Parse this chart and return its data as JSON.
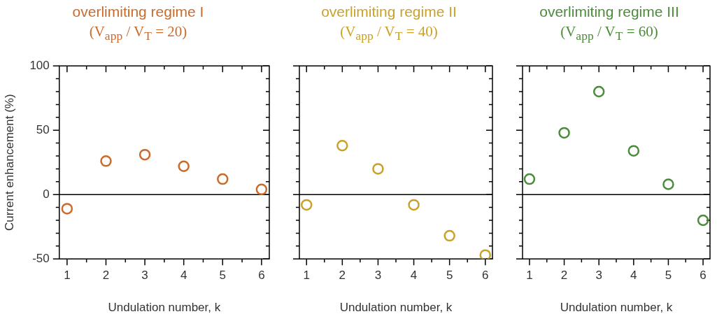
{
  "chart_data": [
    {
      "type": "scatter",
      "title": "overlimiting regime I",
      "subtitle": "(V$_{app}$ / V$_{T}$ = 20)",
      "xlabel": "Undulation number, k",
      "ylabel": "Current enhancement (%)",
      "x": [
        1,
        2,
        3,
        4,
        5,
        6
      ],
      "values": [
        -11,
        26,
        31,
        22,
        12,
        4
      ],
      "color": "#cc6a2a",
      "marker": "circle",
      "xlim": [
        0.8,
        6.2
      ],
      "xticks": [
        1,
        {
          "value": 1.5,
          "label": null
        },
        2,
        {
          "value": 2.5,
          "label": null
        },
        3,
        {
          "value": 3.5,
          "label": null
        },
        4,
        {
          "value": 4.5,
          "label": null
        },
        5,
        {
          "value": 5.5,
          "label": null
        },
        6
      ],
      "ylim": [
        -50,
        100
      ],
      "yticks": [
        -50,
        {
          "value": -40,
          "label": null
        },
        {
          "value": -30,
          "label": null
        },
        {
          "value": -20,
          "label": null
        },
        {
          "value": -10,
          "label": null
        },
        0,
        {
          "value": 10,
          "label": null
        },
        {
          "value": 20,
          "label": null
        },
        {
          "value": 30,
          "label": null
        },
        {
          "value": 40,
          "label": null
        },
        50,
        {
          "value": 60,
          "label": null
        },
        {
          "value": 70,
          "label": null
        },
        {
          "value": 80,
          "label": null
        },
        {
          "value": 90,
          "label": null
        },
        100
      ],
      "ref_lines": [
        {
          "axis": "y",
          "value": 0,
          "color": "#000000"
        }
      ],
      "grid": false,
      "legend": false
    },
    {
      "type": "scatter",
      "title": "overlimiting regime II",
      "subtitle": "(V$_{app}$ / V$_{T}$ = 40)",
      "xlabel": "Undulation number, k",
      "x": [
        1,
        2,
        3,
        4,
        5,
        6
      ],
      "values": [
        -8,
        38,
        20,
        -8,
        -32,
        -47
      ],
      "color": "#c9a227",
      "marker": "circle",
      "xlim": [
        0.8,
        6.2
      ],
      "xticks": [
        1,
        {
          "value": 1.5,
          "label": null
        },
        2,
        {
          "value": 2.5,
          "label": null
        },
        3,
        {
          "value": 3.5,
          "label": null
        },
        4,
        {
          "value": 4.5,
          "label": null
        },
        5,
        {
          "value": 5.5,
          "label": null
        },
        6
      ],
      "ylim": [
        -50,
        100
      ],
      "yticks": [
        -50,
        {
          "value": -40,
          "label": null
        },
        {
          "value": -30,
          "label": null
        },
        {
          "value": -20,
          "label": null
        },
        {
          "value": -10,
          "label": null
        },
        0,
        {
          "value": 10,
          "label": null
        },
        {
          "value": 20,
          "label": null
        },
        {
          "value": 30,
          "label": null
        },
        {
          "value": 40,
          "label": null
        },
        50,
        {
          "value": 60,
          "label": null
        },
        {
          "value": 70,
          "label": null
        },
        {
          "value": 80,
          "label": null
        },
        {
          "value": 90,
          "label": null
        },
        100
      ],
      "ref_lines": [
        {
          "axis": "y",
          "value": 0,
          "color": "#000000"
        }
      ],
      "grid": false,
      "legend": false,
      "tick_labels": "x"
    },
    {
      "type": "scatter",
      "title": "overlimiting regime III",
      "subtitle": "(V$_{app}$ / V$_{T}$ = 60)",
      "xlabel": "Undulation number, k",
      "x": [
        1,
        2,
        3,
        4,
        5,
        6
      ],
      "values": [
        12,
        48,
        80,
        34,
        8,
        -20
      ],
      "color": "#4a8c3a",
      "marker": "circle",
      "xlim": [
        0.8,
        6.2
      ],
      "xticks": [
        1,
        {
          "value": 1.5,
          "label": null
        },
        2,
        {
          "value": 2.5,
          "label": null
        },
        3,
        {
          "value": 3.5,
          "label": null
        },
        4,
        {
          "value": 4.5,
          "label": null
        },
        5,
        {
          "value": 5.5,
          "label": null
        },
        6
      ],
      "ylim": [
        -50,
        100
      ],
      "yticks": [
        -50,
        {
          "value": -40,
          "label": null
        },
        {
          "value": -30,
          "label": null
        },
        {
          "value": -20,
          "label": null
        },
        {
          "value": -10,
          "label": null
        },
        0,
        {
          "value": 10,
          "label": null
        },
        {
          "value": 20,
          "label": null
        },
        {
          "value": 30,
          "label": null
        },
        {
          "value": 40,
          "label": null
        },
        50,
        {
          "value": 60,
          "label": null
        },
        {
          "value": 70,
          "label": null
        },
        {
          "value": 80,
          "label": null
        },
        {
          "value": 90,
          "label": null
        },
        100
      ],
      "ref_lines": [
        {
          "axis": "y",
          "value": 0,
          "color": "#000000"
        }
      ],
      "grid": false,
      "legend": false,
      "tick_labels": "x"
    }
  ]
}
